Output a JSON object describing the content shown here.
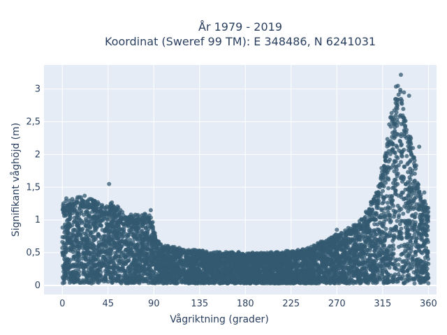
{
  "chart_data": {
    "type": "scatter",
    "title_line1": "År 1979 - 2019",
    "title_line2": "Koordinat (Sweref 99 TM): E 348486, N 6241031",
    "xlabel": "Vågriktning (grader)",
    "ylabel": "Signifikant våghöjd (m)",
    "xlim": [
      -18,
      368
    ],
    "ylim": [
      -0.14,
      3.37
    ],
    "x_ticks": [
      0,
      45,
      90,
      135,
      180,
      225,
      270,
      315,
      360
    ],
    "x_tick_labels": [
      "0",
      "45",
      "90",
      "135",
      "180",
      "225",
      "270",
      "315",
      "360"
    ],
    "y_ticks": [
      0,
      0.5,
      1,
      1.5,
      2,
      2.5,
      3
    ],
    "y_tick_labels": [
      "0",
      "0,5",
      "1",
      "1,5",
      "2",
      "2,5",
      "3"
    ],
    "grid": true,
    "legend": "none",
    "marker_color": "#335a70",
    "plot_bg": "#e5ecf6",
    "envelope": {
      "direction_deg": [
        0,
        10,
        20,
        30,
        40,
        50,
        60,
        70,
        80,
        88,
        92,
        100,
        120,
        150,
        180,
        210,
        240,
        260,
        280,
        295,
        305,
        312,
        318,
        322,
        326,
        330,
        334,
        338,
        342,
        346,
        350,
        355,
        360
      ],
      "max_height_m": [
        1.25,
        1.3,
        1.35,
        1.3,
        1.2,
        1.25,
        1.1,
        1.05,
        1.1,
        1.05,
        0.7,
        0.6,
        0.55,
        0.5,
        0.5,
        0.5,
        0.55,
        0.7,
        0.85,
        1.0,
        1.3,
        1.65,
        2.1,
        2.6,
        2.9,
        3.2,
        2.9,
        2.5,
        2.3,
        2.0,
        1.6,
        1.3,
        1.2
      ]
    },
    "outliers": [
      {
        "x": 46,
        "y": 1.55
      },
      {
        "x": 333,
        "y": 3.22
      },
      {
        "x": 330,
        "y": 3.05
      },
      {
        "x": 336,
        "y": 2.95
      },
      {
        "x": 328,
        "y": 2.85
      },
      {
        "x": 341,
        "y": 2.9
      },
      {
        "x": 351,
        "y": 2.12
      },
      {
        "x": 356,
        "y": 1.42
      },
      {
        "x": 4,
        "y": 1.33
      },
      {
        "x": 22,
        "y": 1.37
      },
      {
        "x": 87,
        "y": 1.15
      },
      {
        "x": 270,
        "y": 0.85
      },
      {
        "x": 292,
        "y": 0.92
      },
      {
        "x": 324,
        "y": 2.55
      },
      {
        "x": 345,
        "y": 1.95
      }
    ]
  }
}
